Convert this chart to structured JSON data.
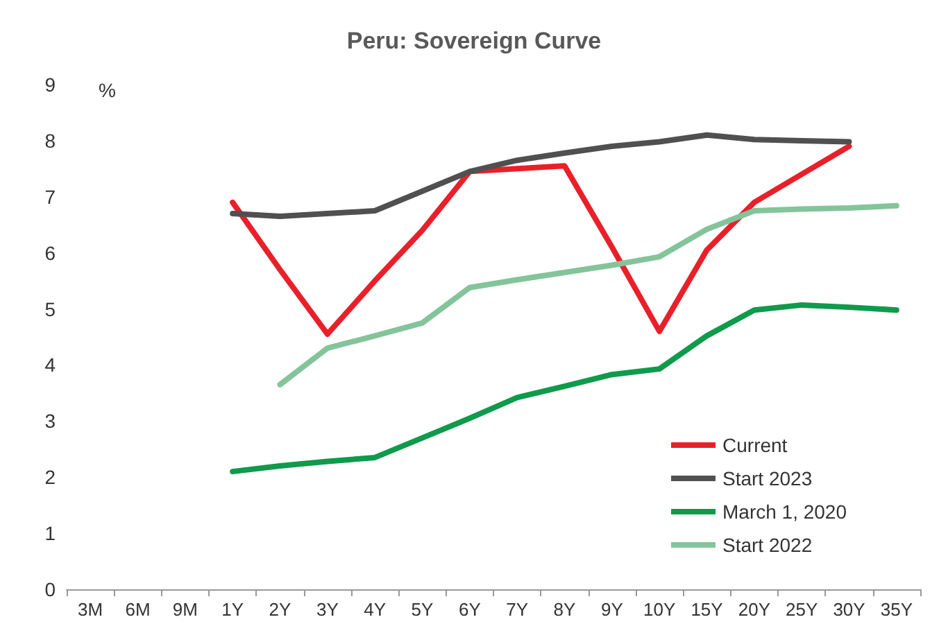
{
  "chart_data": {
    "type": "line",
    "title": "Peru: Sovereign Curve",
    "ylabel": "%",
    "categories": [
      "3M",
      "6M",
      "9M",
      "1Y",
      "2Y",
      "3Y",
      "4Y",
      "5Y",
      "6Y",
      "7Y",
      "8Y",
      "9Y",
      "10Y",
      "15Y",
      "20Y",
      "25Y",
      "30Y",
      "35Y"
    ],
    "series": [
      {
        "name": "Current",
        "color": "#e8202a",
        "values": [
          null,
          null,
          null,
          6.9,
          5.7,
          4.55,
          5.5,
          6.4,
          7.45,
          7.5,
          7.55,
          6.1,
          4.6,
          6.05,
          6.9,
          7.4,
          7.9,
          null
        ]
      },
      {
        "name": "Start 2023",
        "color": "#505050",
        "values": [
          null,
          null,
          null,
          6.7,
          6.65,
          6.7,
          6.75,
          7.1,
          7.45,
          7.65,
          7.78,
          7.9,
          7.98,
          8.1,
          8.02,
          8.0,
          7.98,
          null
        ]
      },
      {
        "name": "March 1, 2020",
        "color": "#0f9a4c",
        "values": [
          null,
          null,
          null,
          2.1,
          2.2,
          2.28,
          2.35,
          2.7,
          3.05,
          3.42,
          3.62,
          3.83,
          3.93,
          4.52,
          4.98,
          5.07,
          5.03,
          4.98
        ]
      },
      {
        "name": "Start 2022",
        "color": "#84c49a",
        "values": [
          null,
          null,
          null,
          null,
          3.65,
          4.3,
          4.52,
          4.75,
          5.38,
          5.52,
          5.65,
          5.78,
          5.93,
          6.42,
          6.75,
          6.78,
          6.8,
          6.84
        ]
      }
    ],
    "ylim": [
      0,
      9
    ],
    "yticks": [
      0,
      1,
      2,
      3,
      4,
      5,
      6,
      7,
      8,
      9
    ],
    "grid": false,
    "legend": "bottom right",
    "marker": "none",
    "line_style": "solid"
  }
}
